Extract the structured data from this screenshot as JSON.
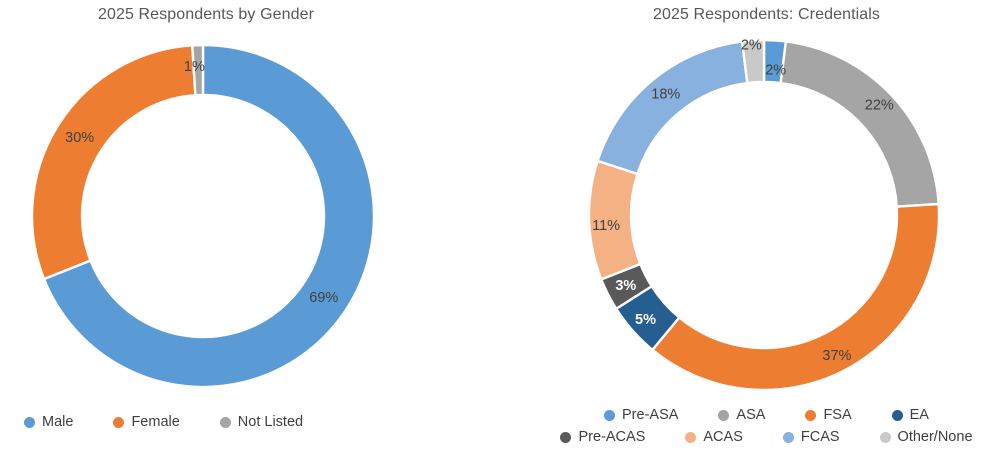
{
  "page": {
    "background": "#ffffff",
    "text_color": "#404040",
    "title_color": "#595959"
  },
  "chart_data": [
    {
      "type": "pie",
      "variant": "donut",
      "title": "2025 Respondents by Gender",
      "categories": [
        "Male",
        "Female",
        "Not Listed"
      ],
      "values": [
        69,
        30,
        1
      ],
      "data_labels": [
        "69%",
        "30%",
        "1%"
      ],
      "colors": [
        "#5B9BD5",
        "#ED7D31",
        "#A5A5A5"
      ],
      "label_colors": [
        "#404040",
        "#404040",
        "#404040"
      ],
      "label_bold": [
        false,
        false,
        false
      ],
      "label_nudges": [
        [
          0,
          0
        ],
        [
          0,
          0
        ],
        [
          -4,
          -3
        ]
      ],
      "start_angle_deg": 0,
      "direction": "clockwise",
      "hole_ratio": 0.71,
      "outer_radius": 171,
      "slice_gap_color": "#FFFFFF",
      "legend_position": "bottom",
      "legend_rows": [
        [
          "Male",
          "Female",
          "Not Listed"
        ]
      ]
    },
    {
      "type": "pie",
      "variant": "donut",
      "title": "2025 Respondents: Credentials",
      "categories": [
        "Pre-ASA",
        "ASA",
        "FSA",
        "EA",
        "Pre-ACAS",
        "ACAS",
        "FCAS",
        "Other/None"
      ],
      "values": [
        2,
        22,
        37,
        5,
        3,
        11,
        18,
        2
      ],
      "data_labels": [
        "2%",
        "22%",
        "37%",
        "5%",
        "3%",
        "11%",
        "18%",
        "2%"
      ],
      "colors": [
        "#5B9BD5",
        "#A5A5A5",
        "#ED7D31",
        "#255E91",
        "#595959",
        "#F4B183",
        "#88B1DF",
        "#C9C9C9"
      ],
      "label_colors": [
        "#404040",
        "#404040",
        "#404040",
        "#FFFFFF",
        "#FFFFFF",
        "#404040",
        "#404040",
        "#404040"
      ],
      "label_bold": [
        false,
        false,
        false,
        true,
        true,
        false,
        false,
        false
      ],
      "label_nudges": [
        [
          2,
          9
        ],
        [
          3,
          -4
        ],
        [
          3,
          4
        ],
        [
          -3,
          3
        ],
        [
          -1,
          1
        ],
        [
          -4,
          6
        ],
        [
          0,
          -2
        ],
        [
          -3,
          -16
        ]
      ],
      "start_angle_deg": 0,
      "direction": "clockwise",
      "hole_ratio": 0.76,
      "outer_radius": 175,
      "slice_gap_color": "#FFFFFF",
      "legend_position": "bottom",
      "legend_rows": [
        [
          "Pre-ASA",
          "ASA",
          "FSA",
          "EA"
        ],
        [
          "Pre-ACAS",
          "ACAS",
          "FCAS",
          "Other/None"
        ]
      ]
    }
  ]
}
